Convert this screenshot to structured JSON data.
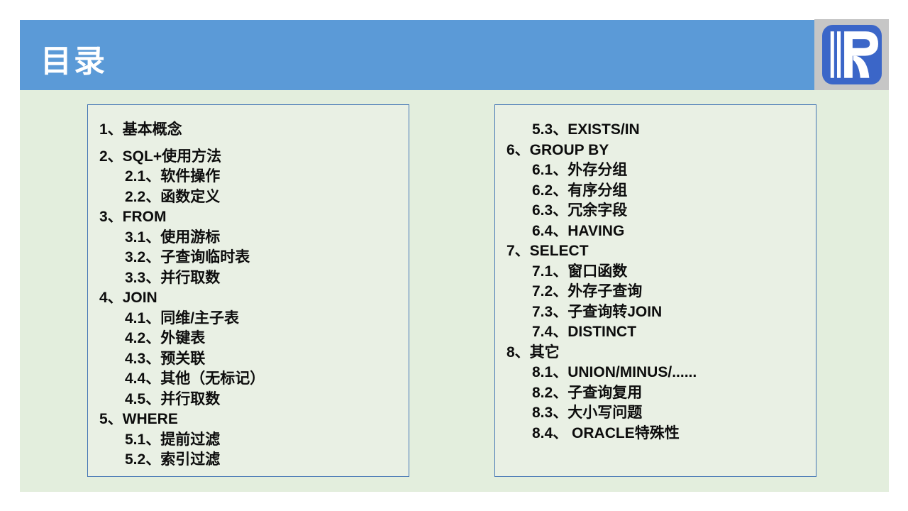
{
  "header": {
    "title": "目录"
  },
  "logo": {
    "icon": "r-brand-logo-icon"
  },
  "colors": {
    "page_bg": "#ffffff",
    "header_bg": "#5b9ad7",
    "header_text": "#ffffff",
    "content_bg": "#e3eedd",
    "box_bg": "#e9f0e4",
    "box_border": "#4374b4",
    "logo_frame": "#c6c6c6",
    "logo_bg": "#3b66c8",
    "logo_mark": "#ffffff",
    "text": "#0d0d0d"
  },
  "toc": {
    "left": [
      {
        "level": 0,
        "text": "1、基本概念"
      },
      {
        "level": 0,
        "text": "2、SQL+使用方法",
        "gap": true
      },
      {
        "level": 1,
        "text": "2.1、软件操作"
      },
      {
        "level": 1,
        "text": "2.2、函数定义"
      },
      {
        "level": 0,
        "text": "3、FROM"
      },
      {
        "level": 1,
        "text": "3.1、使用游标"
      },
      {
        "level": 1,
        "text": "3.2、子查询临时表"
      },
      {
        "level": 1,
        "text": "3.3、并行取数"
      },
      {
        "level": 0,
        "text": "4、JOIN"
      },
      {
        "level": 1,
        "text": "4.1、同维/主子表"
      },
      {
        "level": 1,
        "text": "4.2、外键表"
      },
      {
        "level": 1,
        "text": "4.3、预关联"
      },
      {
        "level": 1,
        "text": "4.4、其他（无标记）"
      },
      {
        "level": 1,
        "text": "4.5、并行取数"
      },
      {
        "level": 0,
        "text": "5、WHERE"
      },
      {
        "level": 1,
        "text": "5.1、提前过滤"
      },
      {
        "level": 1,
        "text": "5.2、索引过滤"
      }
    ],
    "right": [
      {
        "level": 1,
        "text": "5.3、EXISTS/IN"
      },
      {
        "level": 0,
        "text": "6、GROUP BY"
      },
      {
        "level": 1,
        "text": "6.1、外存分组"
      },
      {
        "level": 1,
        "text": "6.2、有序分组"
      },
      {
        "level": 1,
        "text": "6.3、冗余字段"
      },
      {
        "level": 1,
        "text": "6.4、HAVING"
      },
      {
        "level": 0,
        "text": "7、SELECT"
      },
      {
        "level": 1,
        "text": "7.1、窗口函数"
      },
      {
        "level": 1,
        "text": "7.2、外存子查询"
      },
      {
        "level": 1,
        "text": "7.3、子查询转JOIN"
      },
      {
        "level": 1,
        "text": "7.4、DISTINCT"
      },
      {
        "level": 0,
        "text": "8、其它"
      },
      {
        "level": 1,
        "text": "8.1、UNION/MINUS/......"
      },
      {
        "level": 1,
        "text": "8.2、子查询复用"
      },
      {
        "level": 1,
        "text": "8.3、大小写问题"
      },
      {
        "level": 1,
        "text": "8.4、 ORACLE特殊性"
      }
    ]
  }
}
